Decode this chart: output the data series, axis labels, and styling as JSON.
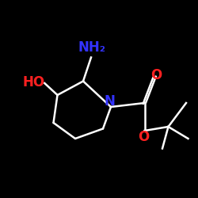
{
  "bg_color": "#000000",
  "bond_color": "#ffffff",
  "N_color": "#3333ff",
  "O_color": "#ff2020",
  "label_NH2": "NH₂",
  "label_HO": "HO",
  "label_N": "N",
  "label_O1": "O",
  "label_O2": "O",
  "figsize": [
    2.5,
    2.5
  ],
  "dpi": 100,
  "lw": 1.8
}
